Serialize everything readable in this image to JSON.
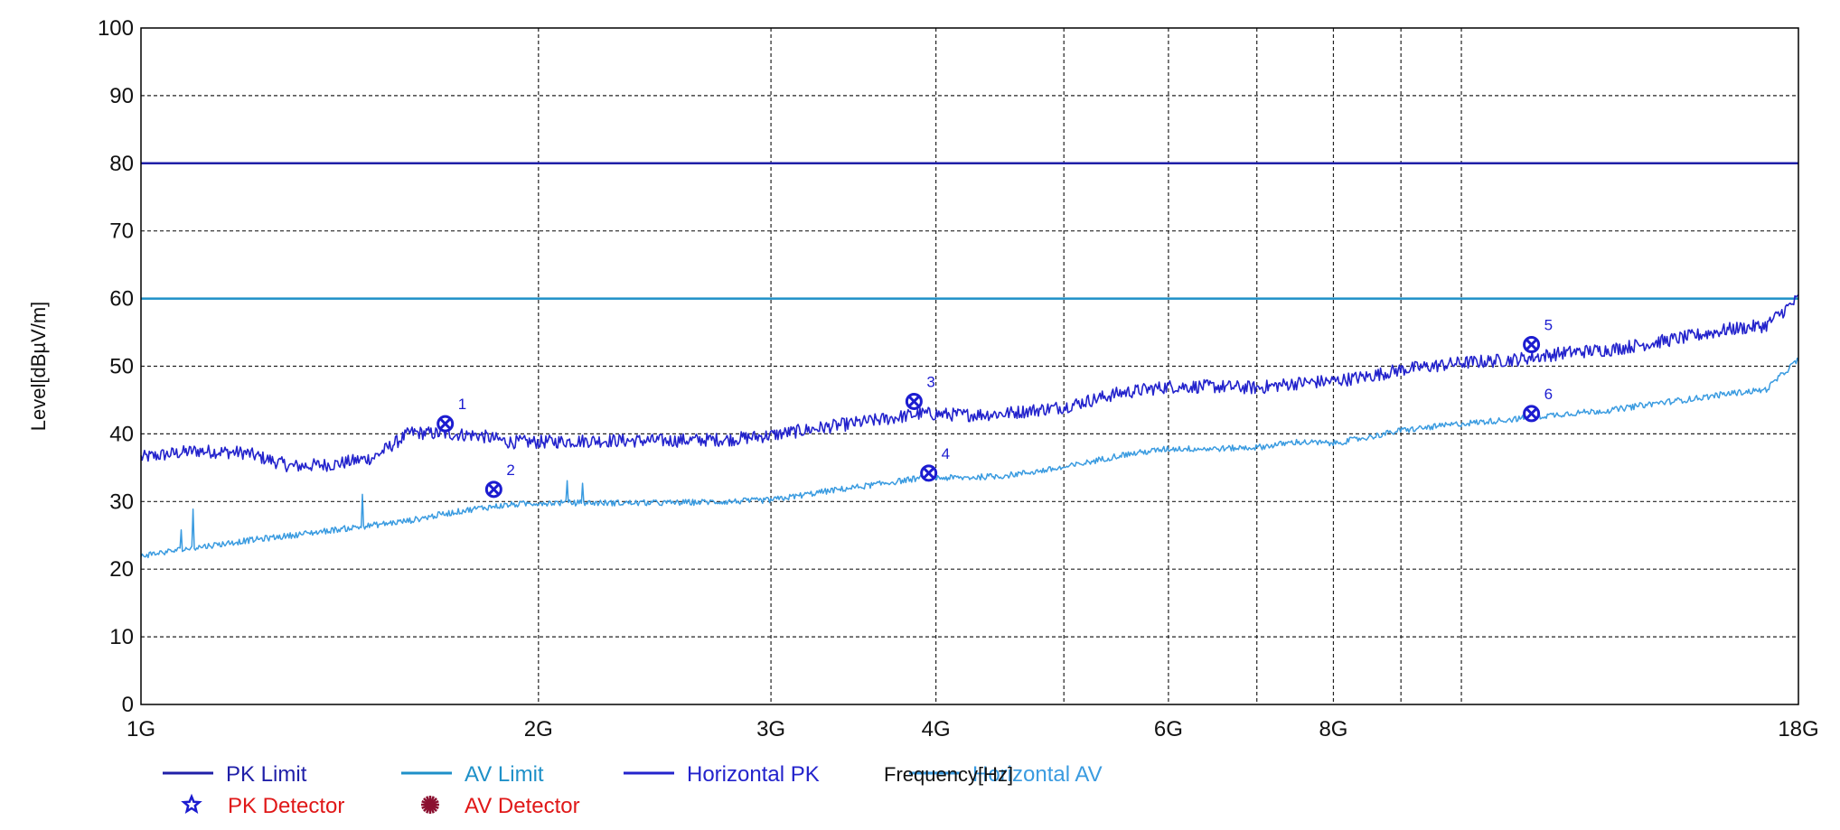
{
  "chart_data": {
    "type": "line",
    "title": "",
    "xlabel": "Frequency[Hz]",
    "ylabel": "Level[dBµV/m]",
    "x_scale": "log",
    "xlim": [
      1000000000,
      18000000000
    ],
    "ylim": [
      0,
      100
    ],
    "grid": true,
    "x_ticks": [
      {
        "value": 1000000000,
        "label": "1G"
      },
      {
        "value": 2000000000,
        "label": "2G"
      },
      {
        "value": 3000000000,
        "label": "3G"
      },
      {
        "value": 4000000000,
        "label": "4G"
      },
      {
        "value": 6000000000,
        "label": "6G"
      },
      {
        "value": 8000000000,
        "label": "8G"
      },
      {
        "value": 18000000000,
        "label": "18G"
      }
    ],
    "x_minor_gridlines": [
      5000000000,
      7000000000,
      9000000000,
      10000000000
    ],
    "y_ticks": [
      0,
      10,
      20,
      30,
      40,
      50,
      60,
      70,
      80,
      90,
      100
    ],
    "colors": {
      "pk_limit": "#1f1fa8",
      "av_limit": "#1e90c8",
      "horizontal_pk": "#2323cc",
      "horizontal_av": "#3a9be0",
      "marker": "#1c1cd0",
      "detector_text": "#e01818",
      "av_detector_symbol": "#8b1030"
    },
    "limits": [
      {
        "name": "PK Limit",
        "value": 80
      },
      {
        "name": "AV Limit",
        "value": 60
      }
    ],
    "series": [
      {
        "name": "Horizontal PK",
        "x": [
          1000000000,
          1100000000,
          1200000000,
          1300000000,
          1400000000,
          1500000000,
          1600000000,
          1700000000,
          1800000000,
          1900000000,
          2000000000,
          2200000000,
          2500000000,
          2800000000,
          3000000000,
          3300000000,
          3600000000,
          3900000000,
          4200000000,
          4500000000,
          5000000000,
          5500000000,
          6000000000,
          6500000000,
          7000000000,
          7500000000,
          8000000000,
          8500000000,
          9000000000,
          10000000000,
          11000000000,
          12000000000,
          13000000000,
          14000000000,
          15000000000,
          16000000000,
          17000000000,
          18000000000
        ],
        "values": [
          36.5,
          37.5,
          37.2,
          35.2,
          35.5,
          36.5,
          40.2,
          40.0,
          39.8,
          38.8,
          38.8,
          39.0,
          39.0,
          39.2,
          39.8,
          41.0,
          42.0,
          43.0,
          42.8,
          43.0,
          44.0,
          46.0,
          47.0,
          47.0,
          46.8,
          47.5,
          47.8,
          48.5,
          49.5,
          50.5,
          51.0,
          52.0,
          52.5,
          53.5,
          54.5,
          55.5,
          56.0,
          60.0
        ]
      },
      {
        "name": "Horizontal AV",
        "x": [
          1000000000,
          1100000000,
          1200000000,
          1300000000,
          1400000000,
          1500000000,
          1600000000,
          1700000000,
          1800000000,
          1900000000,
          2000000000,
          2200000000,
          2500000000,
          2800000000,
          3000000000,
          3300000000,
          3600000000,
          3900000000,
          4200000000,
          4500000000,
          5000000000,
          5500000000,
          6000000000,
          6500000000,
          7000000000,
          7500000000,
          8000000000,
          8500000000,
          9000000000,
          10000000000,
          11000000000,
          12000000000,
          13000000000,
          14000000000,
          15000000000,
          16000000000,
          17000000000,
          18000000000
        ],
        "values": [
          22.0,
          23.2,
          24.2,
          25.0,
          25.8,
          26.5,
          27.2,
          28.2,
          29.0,
          29.5,
          29.8,
          29.8,
          29.8,
          30.0,
          30.2,
          31.5,
          32.5,
          33.5,
          33.5,
          33.8,
          35.0,
          36.8,
          37.8,
          37.8,
          38.0,
          38.8,
          38.6,
          39.5,
          40.5,
          41.5,
          42.2,
          43.0,
          43.5,
          44.5,
          45.2,
          46.0,
          46.5,
          51.0
        ]
      }
    ],
    "markers": [
      {
        "label": "1",
        "x": 1700000000,
        "value": 41.5
      },
      {
        "label": "2",
        "x": 1850000000,
        "value": 31.8
      },
      {
        "label": "3",
        "x": 3850000000,
        "value": 44.8
      },
      {
        "label": "4",
        "x": 3950000000,
        "value": 34.2
      },
      {
        "label": "5",
        "x": 11300000000,
        "value": 53.2
      },
      {
        "label": "6",
        "x": 11300000000,
        "value": 43.0
      }
    ],
    "legend": {
      "placement": "bottom",
      "entries": [
        {
          "name": "PK Limit",
          "symbol": "line",
          "color": "#1f1fa8"
        },
        {
          "name": "AV Limit",
          "symbol": "line",
          "color": "#1e90c8"
        },
        {
          "name": "Horizontal PK",
          "symbol": "line",
          "color": "#2323cc"
        },
        {
          "name": "Horizontal AV",
          "symbol": "line",
          "color": "#3a9be0"
        },
        {
          "name": "PK Detector",
          "symbol": "star",
          "color": "#e01818"
        },
        {
          "name": "AV Detector",
          "symbol": "burst",
          "color": "#e01818"
        }
      ]
    }
  }
}
